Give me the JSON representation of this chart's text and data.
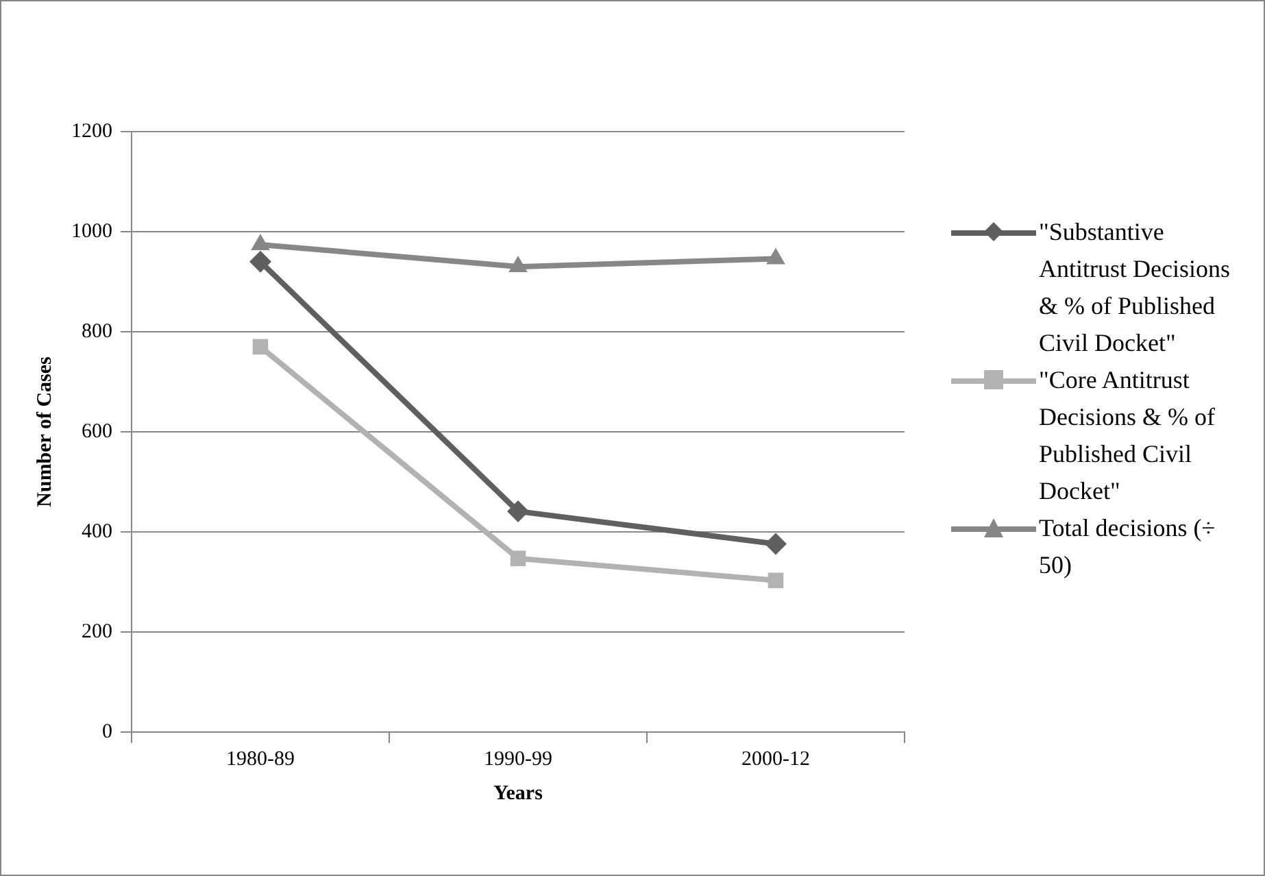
{
  "chart_data": {
    "type": "line",
    "xlabel": "Years",
    "ylabel": "Number of Cases",
    "categories": [
      "1980-89",
      "1990-99",
      "2000-12"
    ],
    "series": [
      {
        "name": "\"Substantive Antitrust Decisions & % of Published Civil Docket\"",
        "color": "#5f5f5f",
        "marker": "diamond",
        "values": [
          940,
          441,
          376
        ]
      },
      {
        "name": "\"Core Antitrust Decisions & % of Published Civil Docket\"",
        "color": "#b2b2b2",
        "marker": "square",
        "values": [
          770,
          347,
          303
        ]
      },
      {
        "name": "Total decisions (÷ 50)",
        "color": "#878787",
        "marker": "triangle",
        "values": [
          974,
          930,
          946
        ]
      }
    ],
    "ylim": [
      0,
      1200
    ],
    "yticks": [
      0,
      200,
      400,
      600,
      800,
      1000,
      1200
    ],
    "grid": "y",
    "legend": "right"
  }
}
